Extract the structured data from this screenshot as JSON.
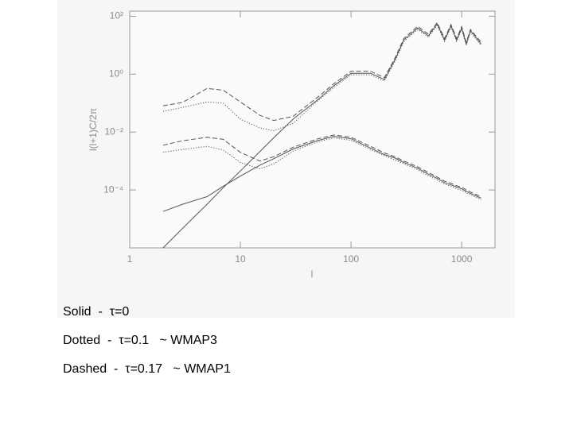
{
  "chart_data": {
    "type": "line",
    "xlabel": "l",
    "ylabel": "l(l+1)C/2π",
    "xlog": true,
    "ylog": true,
    "xlim": [
      1,
      2000
    ],
    "ylim": [
      1e-06,
      150
    ],
    "xticks": [
      1,
      10,
      100,
      1000
    ],
    "yticks": [
      {
        "value": 0.0001,
        "label": "10⁻⁴"
      },
      {
        "value": 0.01,
        "label": "10⁻²"
      },
      {
        "value": 1,
        "label": "10⁰"
      },
      {
        "value": 100,
        "label": "10²"
      }
    ],
    "x": [
      2,
      3,
      5,
      7,
      10,
      15,
      20,
      30,
      50,
      70,
      100,
      150,
      200,
      250,
      300,
      400,
      500,
      600,
      700,
      800,
      900,
      1000,
      1100,
      1200,
      1500
    ],
    "series": [
      {
        "color": "#555555",
        "style": "solid",
        "values": [
          1e-06,
          4.7e-06,
          3.2e-05,
          0.00012,
          0.00045,
          0.0021,
          0.0063,
          0.028,
          0.13,
          0.4,
          1.07,
          1.07,
          0.65,
          3.2,
          15,
          39,
          21,
          54,
          15,
          47,
          15,
          39,
          11,
          32,
          11
        ]
      },
      {
        "color": "#555555",
        "style": "dotted",
        "values": [
          0.052,
          0.071,
          0.11,
          0.1,
          0.028,
          0.014,
          0.011,
          0.02,
          0.12,
          0.35,
          0.95,
          0.95,
          0.58,
          2.8,
          13.5,
          35,
          19,
          48,
          13.5,
          42,
          13.5,
          35,
          10,
          28,
          9.8
        ]
      },
      {
        "color": "#555555",
        "style": "dashed",
        "values": [
          0.081,
          0.105,
          0.32,
          0.28,
          0.11,
          0.038,
          0.025,
          0.035,
          0.16,
          0.47,
          1.26,
          1.26,
          0.76,
          3.6,
          17,
          45,
          24,
          60,
          17,
          52,
          17,
          44,
          12.6,
          35,
          12.6
        ]
      },
      {
        "color": "#555555",
        "style": "solid",
        "values": [
          1.8e-05,
          3.2e-05,
          5.9e-05,
          0.000135,
          0.0003,
          0.00072,
          0.0012,
          0.0026,
          0.0051,
          0.0071,
          0.0059,
          0.0028,
          0.00166,
          0.00126,
          0.00089,
          0.00056,
          0.00035,
          0.00025,
          0.00018,
          0.00015,
          0.000126,
          0.00011,
          8.9e-05,
          7.6e-05,
          5.2e-05
        ]
      },
      {
        "color": "#555555",
        "style": "dotted",
        "values": [
          0.002,
          0.0025,
          0.0032,
          0.0024,
          0.00089,
          0.00054,
          0.00079,
          0.0022,
          0.0046,
          0.0063,
          0.0052,
          0.0025,
          0.0015,
          0.0011,
          0.0008,
          0.0005,
          0.00031,
          0.00022,
          0.00016,
          0.000135,
          0.00011,
          9.8e-05,
          7.9e-05,
          6.8e-05,
          4.6e-05
        ]
      },
      {
        "color": "#555555",
        "style": "dashed",
        "values": [
          0.0035,
          0.005,
          0.0066,
          0.0056,
          0.002,
          0.001,
          0.0014,
          0.003,
          0.0058,
          0.0079,
          0.0066,
          0.0032,
          0.0019,
          0.0014,
          0.001,
          0.00063,
          0.0004,
          0.00028,
          0.0002,
          0.00017,
          0.00014,
          0.000125,
          0.0001,
          8.5e-05,
          5.8e-05
        ]
      }
    ],
    "legend": [
      "Solid  -  τ=0",
      "Dotted  -  τ=0.1   ~ WMAP3",
      "Dashed  -  τ=0.17   ~ WMAP1"
    ]
  }
}
